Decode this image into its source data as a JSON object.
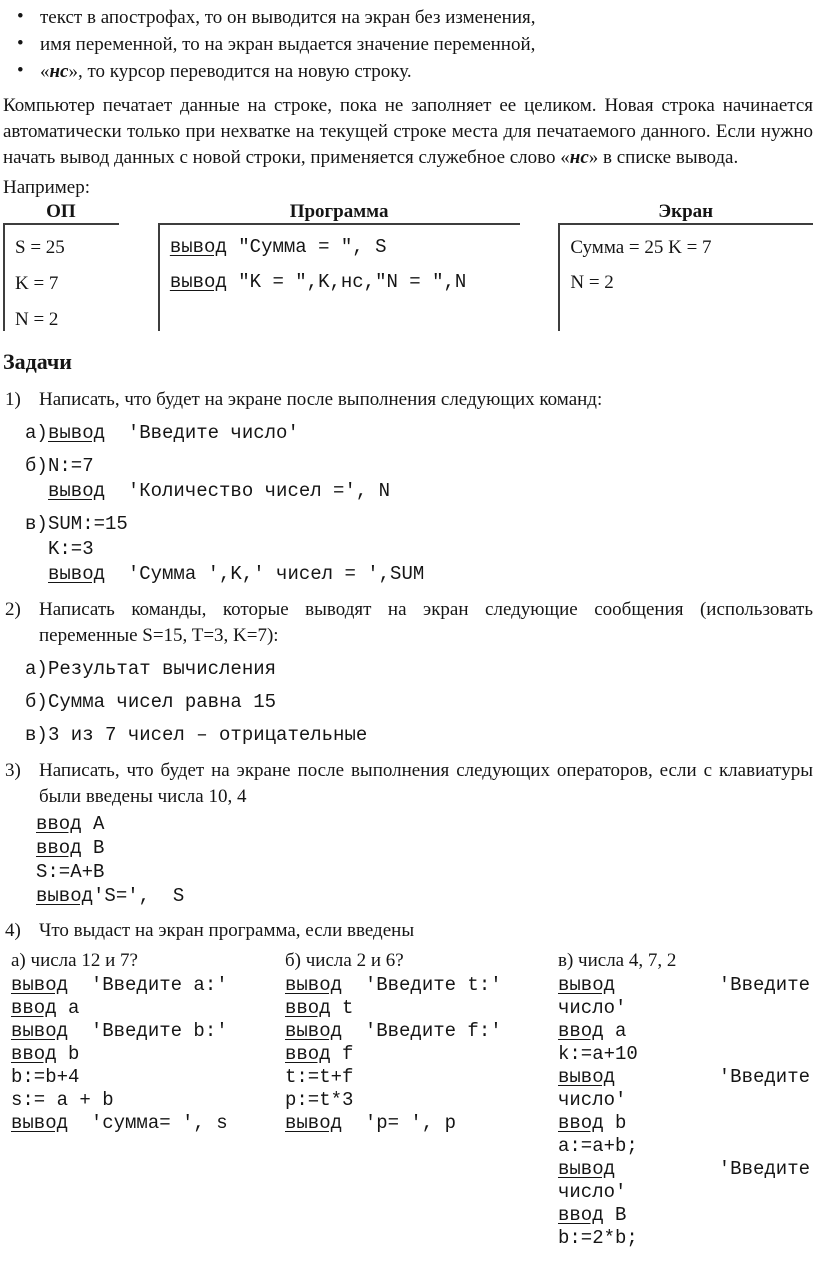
{
  "bullet_char": "•",
  "bullets": {
    "b1": "текст в апострофах, то он выводится на экран без изменения,",
    "b2": "имя переменной, то на экран выдается значение переменной,",
    "b3_pre": "«",
    "b3_em": "нс",
    "b3_post": "», то курсор переводится на новую строку."
  },
  "paragraph": {
    "part1": "Компьютер печатает данные на строке, пока не заполняет ее целиком. Новая строка начинается автоматически только при нехватке на текущей строке места для печатаемого данного. Если нужно начать вывод данных с новой строки, применяется служебное слово «",
    "em": "нс",
    "part2": "» в списке вывода."
  },
  "example": {
    "label": "Например:",
    "op": {
      "header": "ОП",
      "rows": [
        "S = 25",
        "K = 7",
        "N = 2"
      ]
    },
    "prog": {
      "header": "Программа",
      "rows": [
        {
          "kw": "вывод",
          "rest": " \"Сумма = \", S"
        },
        {
          "kw": "вывод",
          "rest": " \"K = \",K,нс,\"N = \",N"
        }
      ]
    },
    "screen": {
      "header": "Экран",
      "rows": [
        "Сумма = 25 K = 7",
        "N = 2"
      ]
    }
  },
  "tasks": {
    "heading": "Задачи",
    "items": [
      {
        "num": "1)",
        "text": "Написать, что будет на экране после выполнения следующих команд:",
        "subs": [
          {
            "marker": "а)",
            "lines": [
              {
                "kw": "вывод",
                "rest": "  'Введите число'"
              }
            ]
          },
          {
            "marker": "б)",
            "lines": [
              {
                "plain": "N:=7"
              },
              {
                "kw": "вывод",
                "rest": "  'Количество чисел =', N"
              }
            ]
          },
          {
            "marker": "в)",
            "lines": [
              {
                "plain": "SUM:=15"
              },
              {
                "plain": "K:=3"
              },
              {
                "kw": "вывод",
                "rest": "  'Сумма ',K,' чисел = ',SUM"
              }
            ]
          }
        ]
      },
      {
        "num": "2)",
        "text": "Написать команды, которые  выводят на экран следующие сообщения (использовать переменные S=15, T=3, K=7):",
        "subs": [
          {
            "marker": "а)",
            "lines": [
              {
                "plain": "Результат вычисления"
              }
            ]
          },
          {
            "marker": "б)",
            "lines": [
              {
                "plain": "Сумма чисел равна 15"
              }
            ]
          },
          {
            "marker": "в)",
            "lines": [
              {
                "plain": "3 из 7 чисел – отрицательные"
              }
            ]
          }
        ]
      },
      {
        "num": "3)",
        "text": "Написать, что будет на экране после выполнения следующих операторов, если с клавиатуры были введены числа 10, 4",
        "code": [
          {
            "kw": "ввод",
            "rest": " A"
          },
          {
            "kw": "ввод",
            "rest": " B"
          },
          {
            "plain": "S:=A+B"
          },
          {
            "kw": "вывод",
            "rest": "'S=',  S"
          }
        ]
      },
      {
        "num": "4)",
        "text": "Что выдаст на экран программа, если введены",
        "columns": [
          {
            "header": "а) числа 12 и 7?",
            "lines": [
              {
                "kw": "вывод",
                "rest": "  'Введите a:'"
              },
              {
                "kw": "ввод",
                "rest": " a"
              },
              {
                "kw": "вывод",
                "rest": "  'Введите b:'"
              },
              {
                "kw": "ввод",
                "rest": " b"
              },
              {
                "plain": "b:=b+4"
              },
              {
                "plain": "s:= a + b"
              },
              {
                "kw": "вывод",
                "rest": "  'сумма= ', s"
              }
            ]
          },
          {
            "header": "б) числа 2 и 6?",
            "lines": [
              {
                "kw": "вывод",
                "rest": "  'Введите t:'"
              },
              {
                "kw": "ввод",
                "rest": " t"
              },
              {
                "kw": "вывод",
                "rest": "  'Введите f:'"
              },
              {
                "kw": "ввод",
                "rest": " f"
              },
              {
                "plain": "t:=t+f"
              },
              {
                "plain": "p:=t*3"
              },
              {
                "kw": "вывод",
                "rest": "  'p= ', p"
              }
            ]
          },
          {
            "header": "в) числа 4, 7, 2",
            "lines": [
              {
                "kw": "вывод",
                "right": "'Введите"
              },
              {
                "plain": "число'"
              },
              {
                "kw": "ввод",
                "rest": " a"
              },
              {
                "plain": "k:=a+10"
              },
              {
                "kw": "вывод",
                "right": "'Введите"
              },
              {
                "plain": "число'"
              },
              {
                "kw": "ввод",
                "rest": " b"
              },
              {
                "plain": "a:=a+b;"
              },
              {
                "kw": "вывод",
                "right": "'Введите"
              },
              {
                "plain": "число'"
              },
              {
                "kw": "ввод",
                "rest": " B"
              },
              {
                "plain": "b:=2*b;"
              }
            ]
          }
        ]
      }
    ]
  }
}
